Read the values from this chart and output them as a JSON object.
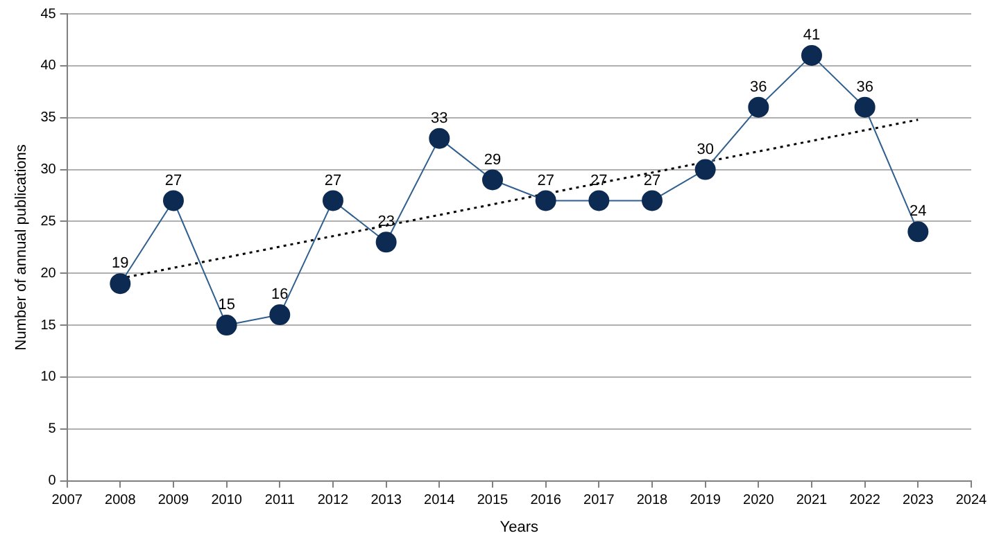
{
  "chart_data": {
    "type": "line",
    "xlabel": "Years",
    "ylabel": "Number of annual publications",
    "x": [
      2008,
      2009,
      2010,
      2011,
      2012,
      2013,
      2014,
      2015,
      2016,
      2017,
      2018,
      2019,
      2020,
      2021,
      2022,
      2023
    ],
    "xlim": [
      2007,
      2024
    ],
    "xticks": [
      2007,
      2008,
      2009,
      2010,
      2011,
      2012,
      2013,
      2014,
      2015,
      2016,
      2017,
      2018,
      2019,
      2020,
      2021,
      2022,
      2023,
      2024
    ],
    "ylim": [
      0,
      45
    ],
    "yticks": [
      0,
      5,
      10,
      15,
      20,
      25,
      30,
      35,
      40,
      45
    ],
    "grid": "y",
    "series": [
      {
        "color": "#0d2b52",
        "marker": "circle",
        "line_style": "solid",
        "values": [
          19,
          27,
          15,
          16,
          27,
          23,
          33,
          29,
          27,
          27,
          27,
          30,
          36,
          41,
          36,
          24
        ],
        "value_labels": [
          "19",
          "27",
          "15",
          "16",
          "27",
          "23",
          "33",
          "29",
          "27",
          "27",
          "27",
          "30",
          "36",
          "41",
          "36",
          "24"
        ]
      },
      {
        "type": "line",
        "color": "#000000",
        "marker": "none",
        "line_style": "dotted",
        "x": [
          2008,
          2023
        ],
        "values": [
          19.5,
          34.8
        ]
      }
    ]
  }
}
